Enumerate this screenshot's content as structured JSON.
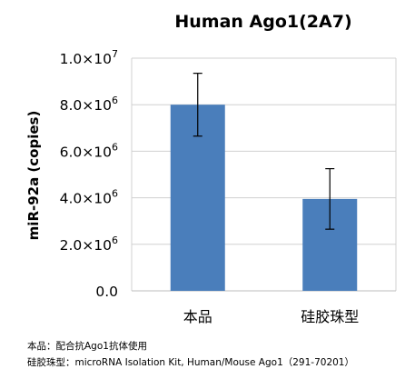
{
  "chart_data": {
    "type": "bar",
    "title": "Human Ago1(2A7)",
    "ylabel": "miR-92a (copies)",
    "xlabel": "",
    "categories": [
      "本品",
      "硅胶珠型"
    ],
    "series": [
      {
        "values": [
          8000000,
          3950000
        ],
        "error": [
          1350000,
          1300000
        ]
      }
    ],
    "ylim": [
      0,
      10000000
    ],
    "ticks": [
      {
        "value": 0,
        "label": "0.0"
      },
      {
        "value": 2000000,
        "mantissa": "2.0",
        "exp": "6"
      },
      {
        "value": 4000000,
        "mantissa": "4.0",
        "exp": "6"
      },
      {
        "value": 6000000,
        "mantissa": "6.0",
        "exp": "6"
      },
      {
        "value": 8000000,
        "mantissa": "8.0",
        "exp": "6"
      },
      {
        "value": 10000000,
        "mantissa": "1.0",
        "exp": "7"
      }
    ],
    "tick_times": "×10",
    "grid": true,
    "bar_color": "#4a7ebb"
  },
  "captions": [
    "本品：配合抗Ago1抗体使用",
    "硅胶珠型：microRNA Isolation Kit, Human/Mouse Ago1（291-70201）"
  ]
}
